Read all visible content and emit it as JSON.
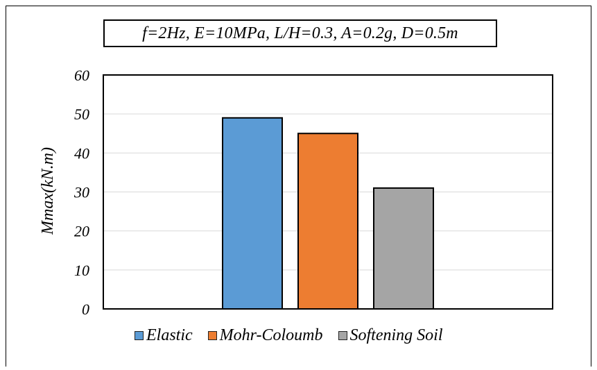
{
  "chart_data": {
    "type": "bar",
    "title": "f=2Hz, E=10MPa, L/H=0.3, A=0.2g, D=0.5m",
    "xlabel": "",
    "ylabel": "Mmax(kN.m)",
    "ylim": [
      0,
      60
    ],
    "yticks": [
      "0",
      "10",
      "20",
      "30",
      "40",
      "50",
      "60"
    ],
    "grid": true,
    "legend_position": "bottom",
    "series": [
      {
        "name": "Elastic",
        "value": 49,
        "color": "#5b9bd5"
      },
      {
        "name": "Mohr-Coloumb",
        "value": 45,
        "color": "#ed7d31"
      },
      {
        "name": "Softening Soil",
        "value": 31,
        "color": "#a5a5a5"
      }
    ]
  }
}
